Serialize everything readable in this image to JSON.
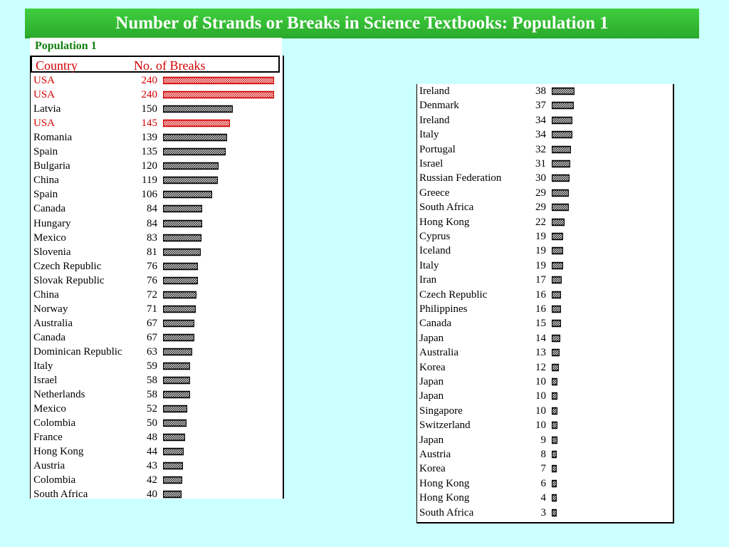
{
  "title": "Number of Strands or Breaks in Science Textbooks: Population 1",
  "section_label": "Population 1",
  "headers": {
    "country": "Country",
    "value": "No. of Breaks"
  },
  "colors": {
    "banner": "#2fb52f",
    "background": "#ccffff",
    "highlight": "#d10000",
    "section_label": "#108010"
  },
  "chart_data": {
    "type": "bar",
    "orientation": "horizontal",
    "value_label": "No. of Breaks",
    "highlighted_country": "USA",
    "left_table": [
      {
        "country": "USA",
        "value": 240
      },
      {
        "country": "USA",
        "value": 240
      },
      {
        "country": "Latvia",
        "value": 150
      },
      {
        "country": "USA",
        "value": 145
      },
      {
        "country": "Romania",
        "value": 139
      },
      {
        "country": "Spain",
        "value": 135
      },
      {
        "country": "Bulgaria",
        "value": 120
      },
      {
        "country": "China",
        "value": 119
      },
      {
        "country": "Spain",
        "value": 106
      },
      {
        "country": "Canada",
        "value": 84
      },
      {
        "country": "Hungary",
        "value": 84
      },
      {
        "country": "Mexico",
        "value": 83
      },
      {
        "country": "Slovenia",
        "value": 81
      },
      {
        "country": "Czech Republic",
        "value": 76
      },
      {
        "country": "Slovak Republic",
        "value": 76
      },
      {
        "country": "China",
        "value": 72
      },
      {
        "country": "Norway",
        "value": 71
      },
      {
        "country": "Australia",
        "value": 67
      },
      {
        "country": "Canada",
        "value": 67
      },
      {
        "country": "Dominican Republic",
        "value": 63
      },
      {
        "country": "Italy",
        "value": 59
      },
      {
        "country": "Israel",
        "value": 58
      },
      {
        "country": "Netherlands",
        "value": 58
      },
      {
        "country": "Mexico",
        "value": 52
      },
      {
        "country": "Colombia",
        "value": 50
      },
      {
        "country": "France",
        "value": 48
      },
      {
        "country": "Hong Kong",
        "value": 44
      },
      {
        "country": "Austria",
        "value": 43
      },
      {
        "country": "Colombia",
        "value": 42
      },
      {
        "country": "South Africa",
        "value": 40
      }
    ],
    "right_table": [
      {
        "country": "Ireland",
        "value": 38
      },
      {
        "country": "Denmark",
        "value": 37
      },
      {
        "country": "Ireland",
        "value": 34
      },
      {
        "country": "Italy",
        "value": 34
      },
      {
        "country": "Portugal",
        "value": 32
      },
      {
        "country": "Israel",
        "value": 31
      },
      {
        "country": "Russian Federation",
        "value": 30
      },
      {
        "country": "Greece",
        "value": 29
      },
      {
        "country": "South Africa",
        "value": 29
      },
      {
        "country": "Hong Kong",
        "value": 22
      },
      {
        "country": "Cyprus",
        "value": 19
      },
      {
        "country": "Iceland",
        "value": 19
      },
      {
        "country": "Italy",
        "value": 19
      },
      {
        "country": "Iran",
        "value": 17
      },
      {
        "country": "Czech Republic",
        "value": 16
      },
      {
        "country": "Philippines",
        "value": 16
      },
      {
        "country": "Canada",
        "value": 15
      },
      {
        "country": "Japan",
        "value": 14
      },
      {
        "country": "Australia",
        "value": 13
      },
      {
        "country": "Korea",
        "value": 12
      },
      {
        "country": "Japan",
        "value": 10
      },
      {
        "country": "Japan",
        "value": 10
      },
      {
        "country": "Singapore",
        "value": 10
      },
      {
        "country": "Switzerland",
        "value": 10
      },
      {
        "country": "Japan",
        "value": 9
      },
      {
        "country": "Austria",
        "value": 8
      },
      {
        "country": "Korea",
        "value": 7
      },
      {
        "country": "Hong Kong",
        "value": 6
      },
      {
        "country": "Hong Kong",
        "value": 4
      },
      {
        "country": "South Africa",
        "value": 3
      }
    ]
  }
}
